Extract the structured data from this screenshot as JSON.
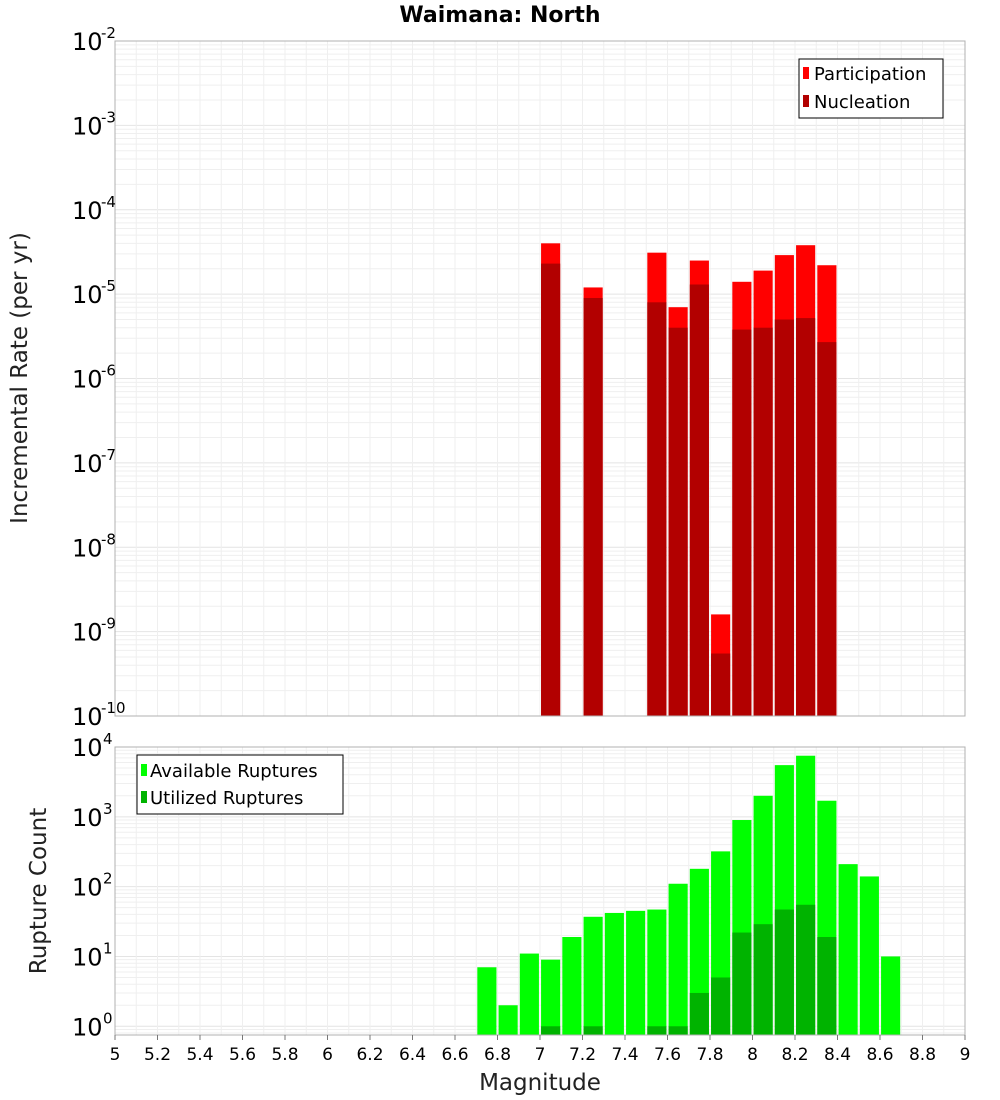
{
  "chart_data": [
    {
      "type": "bar",
      "title": "Waimana: North",
      "ylabel": "Incremental Rate (per yr)",
      "xlabel": "",
      "yscale": "log",
      "ylim": [
        1e-10,
        0.01
      ],
      "xlim": [
        5,
        9
      ],
      "grid": true,
      "legend_position": "top-right",
      "overlay": true,
      "x": [
        7.05,
        7.25,
        7.55,
        7.65,
        7.75,
        7.85,
        7.95,
        8.05,
        8.15,
        8.25,
        8.35
      ],
      "series": [
        {
          "name": "Participation",
          "color": "#ff0000",
          "values": [
            4e-05,
            1.2e-05,
            3.1e-05,
            7e-06,
            2.5e-05,
            1.6e-09,
            1.4e-05,
            1.9e-05,
            2.9e-05,
            3.8e-05,
            2.2e-05
          ]
        },
        {
          "name": "Nucleation",
          "color": "#b20000",
          "values": [
            2.3e-05,
            9e-06,
            8e-06,
            4e-06,
            1.3e-05,
            5.5e-10,
            3.8e-06,
            4e-06,
            5e-06,
            5.2e-06,
            2.7e-06
          ]
        }
      ],
      "yticks": [
        {
          "base": "10",
          "exp": "-2"
        },
        {
          "base": "10",
          "exp": "-3"
        },
        {
          "base": "10",
          "exp": "-4"
        },
        {
          "base": "10",
          "exp": "-5"
        },
        {
          "base": "10",
          "exp": "-6"
        },
        {
          "base": "10",
          "exp": "-7"
        },
        {
          "base": "10",
          "exp": "-8"
        },
        {
          "base": "10",
          "exp": "-9"
        },
        {
          "base": "10",
          "exp": "-10"
        }
      ]
    },
    {
      "type": "bar",
      "title": "",
      "ylabel": "Rupture Count",
      "xlabel": "Magnitude",
      "yscale": "log",
      "ylim": [
        0.75,
        10000
      ],
      "xlim": [
        5,
        9
      ],
      "grid": true,
      "legend_position": "top-left",
      "overlay": true,
      "x": [
        6.75,
        6.85,
        6.95,
        7.05,
        7.15,
        7.25,
        7.35,
        7.45,
        7.55,
        7.65,
        7.75,
        7.85,
        7.95,
        8.05,
        8.15,
        8.25,
        8.35,
        8.45,
        8.55,
        8.65
      ],
      "series": [
        {
          "name": "Available Ruptures",
          "color": "#00ff00",
          "values": [
            7,
            2,
            11,
            9,
            19,
            37,
            42,
            45,
            47,
            110,
            180,
            320,
            900,
            2000,
            5500,
            7500,
            1700,
            210,
            140,
            10
          ]
        },
        {
          "name": "Utilized Ruptures",
          "color": "#00b300",
          "values": [
            0,
            0,
            0,
            1,
            0,
            1,
            0,
            0,
            1,
            1,
            3,
            5,
            22,
            29,
            47,
            55,
            19,
            0,
            0,
            0
          ]
        }
      ],
      "yticks": [
        {
          "base": "10",
          "exp": "4"
        },
        {
          "base": "10",
          "exp": "3"
        },
        {
          "base": "10",
          "exp": "2"
        },
        {
          "base": "10",
          "exp": "1"
        },
        {
          "base": "10",
          "exp": "0"
        }
      ],
      "xticks": [
        "5",
        "5.2",
        "5.4",
        "5.6",
        "5.8",
        "6",
        "6.2",
        "6.4",
        "6.6",
        "6.8",
        "7",
        "7.2",
        "7.4",
        "7.6",
        "7.8",
        "8",
        "8.2",
        "8.4",
        "8.6",
        "8.8",
        "9"
      ]
    }
  ]
}
